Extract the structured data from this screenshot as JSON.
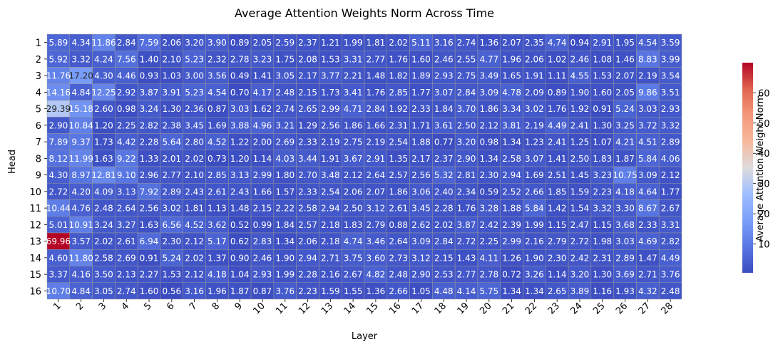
{
  "chart_data": {
    "type": "heatmap",
    "title": "Average Attention Weights Norm Across Time",
    "xlabel": "Layer",
    "ylabel": "Head",
    "colorbar_label": "Average Attention Weight Norm",
    "colormap": "coolwarm",
    "vmin": 0.49,
    "vmax": 69.96,
    "colorbar_ticks": [
      "10",
      "20",
      "30",
      "40",
      "50",
      "60"
    ],
    "colorbar_tick_values": [
      10,
      20,
      30,
      40,
      50,
      60
    ],
    "x_categories": [
      "1",
      "2",
      "3",
      "4",
      "5",
      "6",
      "7",
      "8",
      "9",
      "10",
      "11",
      "12",
      "13",
      "14",
      "15",
      "16",
      "17",
      "18",
      "19",
      "20",
      "21",
      "22",
      "23",
      "24",
      "25",
      "26",
      "27",
      "28"
    ],
    "y_categories": [
      "1",
      "2",
      "3",
      "4",
      "5",
      "6",
      "7",
      "8",
      "9",
      "10",
      "11",
      "12",
      "13",
      "14",
      "15",
      "16"
    ],
    "values": [
      [
        5.89,
        4.34,
        11.86,
        2.84,
        7.59,
        2.06,
        3.2,
        3.9,
        0.89,
        2.05,
        2.59,
        2.37,
        1.21,
        1.99,
        1.81,
        2.02,
        5.11,
        3.16,
        2.74,
        1.36,
        2.07,
        2.35,
        4.74,
        0.94,
        2.91,
        1.95,
        4.54,
        3.59
      ],
      [
        5.92,
        3.32,
        4.24,
        7.56,
        1.4,
        2.1,
        5.23,
        2.32,
        2.78,
        3.23,
        1.75,
        2.08,
        1.53,
        3.31,
        2.77,
        1.76,
        1.6,
        2.46,
        2.55,
        4.77,
        1.96,
        2.06,
        1.02,
        2.46,
        1.08,
        1.46,
        8.83,
        3.99
      ],
      [
        11.76,
        17.2,
        4.3,
        4.46,
        0.93,
        1.03,
        3.0,
        3.56,
        0.49,
        1.41,
        3.05,
        2.17,
        3.77,
        2.21,
        1.48,
        1.82,
        1.89,
        2.93,
        2.75,
        3.49,
        1.65,
        1.91,
        1.11,
        4.55,
        1.53,
        2.07,
        2.19,
        3.54
      ],
      [
        14.16,
        4.84,
        12.25,
        2.92,
        3.87,
        3.91,
        5.23,
        4.54,
        0.7,
        4.17,
        2.48,
        2.15,
        1.73,
        3.41,
        1.76,
        2.85,
        1.77,
        3.07,
        2.84,
        3.09,
        4.78,
        2.09,
        0.89,
        1.9,
        1.6,
        2.05,
        9.86,
        3.51
      ],
      [
        29.39,
        15.18,
        2.6,
        0.98,
        3.24,
        1.3,
        2.36,
        0.87,
        3.03,
        1.62,
        2.74,
        2.65,
        2.99,
        4.71,
        2.84,
        1.92,
        2.33,
        1.84,
        3.7,
        1.86,
        3.34,
        3.02,
        1.76,
        1.92,
        0.91,
        5.24,
        3.03,
        2.93
      ],
      [
        2.9,
        10.84,
        1.2,
        2.25,
        2.82,
        2.38,
        3.45,
        1.69,
        3.88,
        4.96,
        3.21,
        1.29,
        2.56,
        1.86,
        1.66,
        2.31,
        1.71,
        3.61,
        2.5,
        2.12,
        3.81,
        2.19,
        4.49,
        2.41,
        1.3,
        3.25,
        3.72,
        3.32
      ],
      [
        7.89,
        9.37,
        1.73,
        4.42,
        2.28,
        5.64,
        2.8,
        4.52,
        1.22,
        2.0,
        2.69,
        2.33,
        2.19,
        2.75,
        2.19,
        2.54,
        1.88,
        0.77,
        3.2,
        0.98,
        1.34,
        1.23,
        2.41,
        1.25,
        1.07,
        4.21,
        4.51,
        2.89
      ],
      [
        8.12,
        11.99,
        1.63,
        9.22,
        1.33,
        2.01,
        2.02,
        0.73,
        1.2,
        1.14,
        4.03,
        3.44,
        1.91,
        3.67,
        2.91,
        1.35,
        2.17,
        2.37,
        2.9,
        1.34,
        2.58,
        3.07,
        1.41,
        2.5,
        1.83,
        1.87,
        5.84,
        4.06
      ],
      [
        4.3,
        8.97,
        12.81,
        9.1,
        2.96,
        2.77,
        2.1,
        2.85,
        3.13,
        2.99,
        1.8,
        2.7,
        3.48,
        2.12,
        2.64,
        2.57,
        2.56,
        5.32,
        2.81,
        2.3,
        2.94,
        1.69,
        2.51,
        1.45,
        3.23,
        10.75,
        3.09,
        2.12
      ],
      [
        2.72,
        4.2,
        4.09,
        3.13,
        7.92,
        2.89,
        2.43,
        2.61,
        2.43,
        1.66,
        1.57,
        2.33,
        2.54,
        2.06,
        2.07,
        1.86,
        3.06,
        2.4,
        2.34,
        0.59,
        2.52,
        2.66,
        1.85,
        1.59,
        2.23,
        4.18,
        4.64,
        1.77
      ],
      [
        10.44,
        4.76,
        2.48,
        2.64,
        2.56,
        3.02,
        1.81,
        1.13,
        1.48,
        2.15,
        2.22,
        2.58,
        2.94,
        2.5,
        3.12,
        2.61,
        3.45,
        2.28,
        1.76,
        3.28,
        1.88,
        5.84,
        1.42,
        1.54,
        3.32,
        3.3,
        8.67,
        2.67
      ],
      [
        5.01,
        10.91,
        3.24,
        3.27,
        1.63,
        6.56,
        4.52,
        3.62,
        0.52,
        0.99,
        1.84,
        2.57,
        2.18,
        1.83,
        2.79,
        0.88,
        2.62,
        2.02,
        3.87,
        2.42,
        2.39,
        1.99,
        1.15,
        2.47,
        1.15,
        3.68,
        2.33,
        3.31
      ],
      [
        69.96,
        3.57,
        2.02,
        2.61,
        6.94,
        2.3,
        2.12,
        5.17,
        0.62,
        2.83,
        1.34,
        2.06,
        2.18,
        4.74,
        3.46,
        2.64,
        3.09,
        2.84,
        2.72,
        2.25,
        2.99,
        2.16,
        2.79,
        2.72,
        1.98,
        3.03,
        4.69,
        2.82
      ],
      [
        4.6,
        11.8,
        2.58,
        2.69,
        0.91,
        5.24,
        2.02,
        1.37,
        0.9,
        2.46,
        1.9,
        2.94,
        2.71,
        3.75,
        3.6,
        2.73,
        3.12,
        2.15,
        1.43,
        4.11,
        1.26,
        1.9,
        2.3,
        2.42,
        2.31,
        2.89,
        1.47,
        4.49
      ],
      [
        3.37,
        4.16,
        3.5,
        2.13,
        2.27,
        1.53,
        2.12,
        4.18,
        1.04,
        2.93,
        1.99,
        2.28,
        2.16,
        2.67,
        4.82,
        2.48,
        2.9,
        2.53,
        2.77,
        2.78,
        0.72,
        3.26,
        1.14,
        3.2,
        1.3,
        3.69,
        2.71,
        3.76
      ],
      [
        10.7,
        4.84,
        3.05,
        2.74,
        1.6,
        0.56,
        3.16,
        1.96,
        1.87,
        0.87,
        3.76,
        2.23,
        1.59,
        1.55,
        1.36,
        2.66,
        1.05,
        4.48,
        4.14,
        5.75,
        1.34,
        1.34,
        2.65,
        3.89,
        1.16,
        1.93,
        4.32,
        2.48
      ]
    ],
    "grid": true,
    "legend": "colorbar-right"
  }
}
